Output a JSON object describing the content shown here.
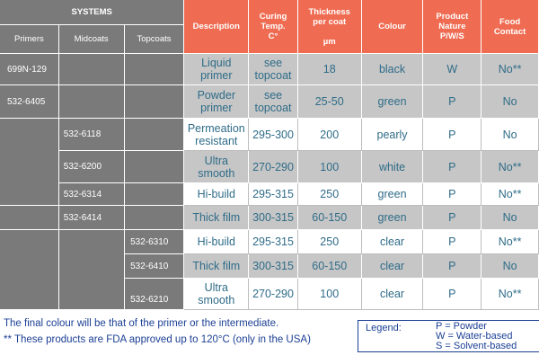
{
  "headers": {
    "systems": "SYSTEMS",
    "primers": "Primers",
    "midcoats": "Midcoats",
    "topcoats": "Topcoats",
    "description": "Description",
    "curing_1": "Curing",
    "curing_2": "Temp.",
    "curing_3": "C°",
    "thickness_1": "Thickness",
    "thickness_2": "per coat",
    "thickness_3": "µm",
    "colour": "Colour",
    "nature_1": "Product",
    "nature_2": "Nature",
    "nature_3": "P/W/S",
    "food_1": "Food",
    "food_2": "Contact"
  },
  "groups": {
    "p1": "699N-129",
    "p2": "532-6405",
    "m1": "532-6118",
    "m2": "532-6200",
    "m3": "532-6314",
    "m4": "532-6414",
    "t1": "532-6310",
    "t2": "532-6410",
    "t3": "532-6210"
  },
  "rows": [
    {
      "description": "Liquid primer",
      "curing": "see topcoat",
      "thickness": "18",
      "colour": "black",
      "nature": "W",
      "food": "No**"
    },
    {
      "description": "Powder primer",
      "curing": "see topcoat",
      "thickness": "25-50",
      "colour": "green",
      "nature": "P",
      "food": "No"
    },
    {
      "description": "Permeation resistant",
      "curing": "295-300",
      "thickness": "200",
      "colour": "pearly",
      "nature": "P",
      "food": "No"
    },
    {
      "description": "Ultra smooth",
      "curing": "270-290",
      "thickness": "100",
      "colour": "white",
      "nature": "P",
      "food": "No**"
    },
    {
      "description": "Hi-build",
      "curing": "295-315",
      "thickness": "250",
      "colour": "green",
      "nature": "P",
      "food": "No**"
    },
    {
      "description": "Thick film",
      "curing": "300-315",
      "thickness": "60-150",
      "colour": "green",
      "nature": "P",
      "food": "No"
    },
    {
      "description": "Hi-build",
      "curing": "295-315",
      "thickness": "250",
      "colour": "clear",
      "nature": "P",
      "food": "No**"
    },
    {
      "description": "Thick film",
      "curing": "300-315",
      "thickness": "60-150",
      "colour": "clear",
      "nature": "P",
      "food": "No"
    },
    {
      "description": "Ultra smooth",
      "curing": "270-290",
      "thickness": "100",
      "colour": "clear",
      "nature": "P",
      "food": "No**"
    }
  ],
  "notes": {
    "line1": "The final colour will be that of the primer or the intermediate.",
    "line2": "** These products are FDA approved up to 120°C (only in the USA)"
  },
  "legend": {
    "title": "Legend:",
    "p": "P = Powder",
    "w": "W = Water-based",
    "s": "S = Solvent-based"
  }
}
